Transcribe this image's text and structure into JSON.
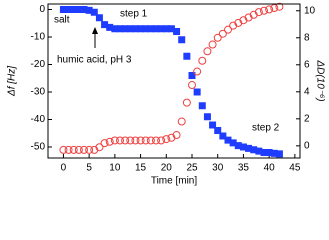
{
  "chart_data": {
    "type": "scatter",
    "x_label": "Time [min]",
    "y_label": "Δf [Hz]",
    "y2_label": "ΔD(10⁻⁶)",
    "annotations": [
      "salt",
      "step 1",
      "humic acid, pH 3",
      "step 2"
    ],
    "x": [
      0,
      1,
      2,
      3,
      4,
      5,
      6,
      7,
      8,
      9,
      10,
      11,
      12,
      13,
      14,
      15,
      16,
      17,
      18,
      19,
      20,
      21,
      22,
      23,
      24,
      25,
      26,
      27,
      28,
      29,
      30,
      31,
      32,
      33,
      34,
      35,
      36,
      37,
      38,
      39,
      40,
      41,
      42
    ],
    "series": [
      {
        "name": "Δf",
        "color": "#1f3dff",
        "marker": "square",
        "axis": "y",
        "values": [
          0,
          0,
          0,
          0,
          0,
          -0.3,
          -1,
          -3,
          -5.5,
          -6.5,
          -7,
          -7,
          -7,
          -7,
          -7,
          -7,
          -7,
          -7,
          -7,
          -7,
          -7,
          -7,
          -8,
          -11,
          -17,
          -24,
          -30,
          -35,
          -39,
          -42,
          -44,
          -46,
          -47.5,
          -48.5,
          -49.5,
          -50,
          -50.5,
          -51,
          -51.5,
          -52,
          -52,
          -52.3,
          -52.5
        ]
      },
      {
        "name": "ΔD",
        "color": "#f04040",
        "marker": "circle",
        "axis": "y2",
        "values": [
          -0.3,
          -0.3,
          -0.3,
          -0.3,
          -0.3,
          -0.3,
          -0.3,
          -0.1,
          0.2,
          0.3,
          0.4,
          0.4,
          0.4,
          0.4,
          0.4,
          0.4,
          0.4,
          0.4,
          0.4,
          0.4,
          0.5,
          0.6,
          0.8,
          1.8,
          3.2,
          4.5,
          5.5,
          6.3,
          7,
          7.5,
          8,
          8.3,
          8.6,
          8.9,
          9.1,
          9.3,
          9.5,
          9.7,
          9.9,
          10,
          10.1,
          10.2,
          10.3
        ]
      }
    ],
    "xlim": [
      -3,
      46
    ],
    "xticks": [
      0,
      5,
      10,
      15,
      20,
      25,
      30,
      35,
      40,
      45
    ],
    "ylim": [
      -54,
      2
    ],
    "yticks": [
      0,
      -10,
      -20,
      -30,
      -40,
      -50
    ],
    "y2lim": [
      -0.9,
      10.5
    ],
    "y2ticks": [
      0,
      2,
      4,
      6,
      8,
      10
    ]
  }
}
